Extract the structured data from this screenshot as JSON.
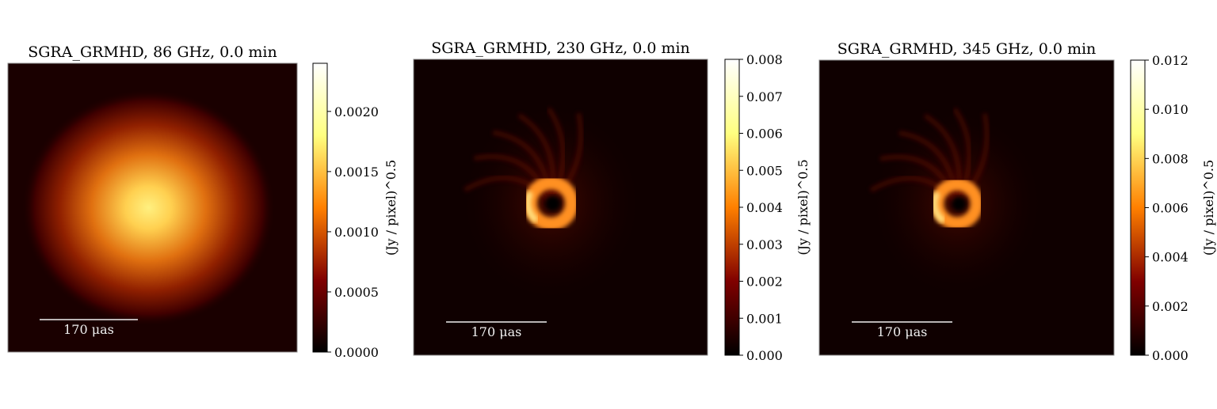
{
  "chart_data": [
    {
      "type": "heatmap",
      "title": "SGRA_GRMHD, 86 GHz, 0.0 min",
      "colormap": "afmhot",
      "colorbar_label": "(Jy / pixel)^0.5",
      "colorbar_range": [
        0.0,
        0.0024
      ],
      "colorbar_ticks": [
        "0.0000",
        "0.0005",
        "0.0010",
        "0.0015",
        "0.0020"
      ],
      "colorbar_tick_values": [
        0.0,
        0.0005,
        0.001,
        0.0015,
        0.002
      ],
      "scalebar_label": "170 μas",
      "structure": "diffuse blob"
    },
    {
      "type": "heatmap",
      "title": "SGRA_GRMHD, 230 GHz, 0.0 min",
      "colormap": "afmhot",
      "colorbar_label": "(Jy / pixel)^0.5",
      "colorbar_range": [
        0.0,
        0.008
      ],
      "colorbar_ticks": [
        "0.000",
        "0.001",
        "0.002",
        "0.003",
        "0.004",
        "0.005",
        "0.006",
        "0.007",
        "0.008"
      ],
      "colorbar_tick_values": [
        0.0,
        0.001,
        0.002,
        0.003,
        0.004,
        0.005,
        0.006,
        0.007,
        0.008
      ],
      "scalebar_label": "170 μas",
      "structure": "ring"
    },
    {
      "type": "heatmap",
      "title": "SGRA_GRMHD, 345 GHz, 0.0 min",
      "colormap": "afmhot",
      "colorbar_label": "(Jy / pixel)^0.5",
      "colorbar_range": [
        0.0,
        0.012
      ],
      "colorbar_ticks": [
        "0.000",
        "0.002",
        "0.004",
        "0.006",
        "0.008",
        "0.010",
        "0.012"
      ],
      "colorbar_tick_values": [
        0.0,
        0.002,
        0.004,
        0.006,
        0.008,
        0.01,
        0.012
      ],
      "scalebar_label": "170 μas",
      "structure": "ring"
    }
  ]
}
